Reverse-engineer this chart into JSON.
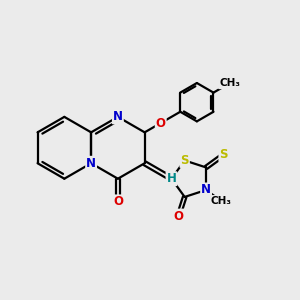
{
  "bg_color": "#ebebeb",
  "bond_color": "#000000",
  "bond_width": 1.6,
  "atom_colors": {
    "N": "#0000cc",
    "O": "#dd0000",
    "S": "#bbbb00",
    "H": "#008888",
    "C": "#000000"
  },
  "font_size": 8.5
}
